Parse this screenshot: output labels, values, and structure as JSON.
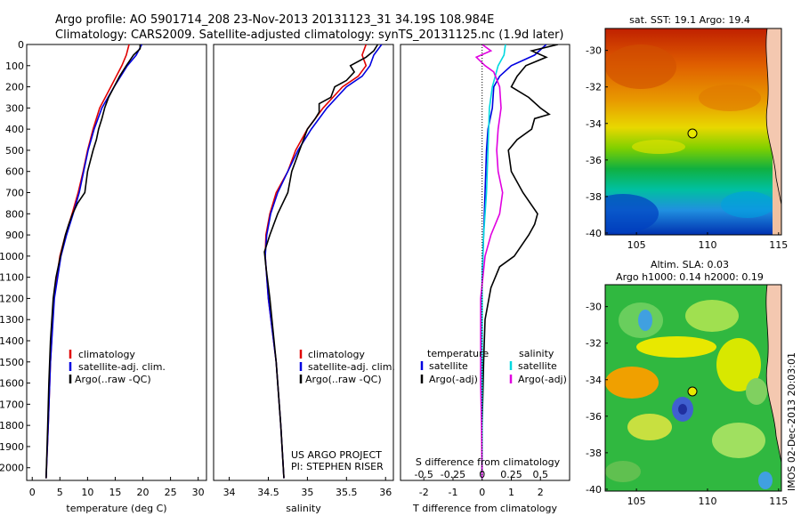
{
  "header": {
    "line1": "Argo profile: AO 5901714_208 23-Nov-2013 20131123_31 34.19S 108.984E",
    "line2": "Climatology: CARS2009. Satellite-adjusted climatology: synTS_20131125.nc (1.9d later)"
  },
  "side_text": "IMOS 02-Dec-2013 20:03:01",
  "colors": {
    "climatology": "#e00000",
    "satellite": "#0000e0",
    "argo": "#000000",
    "sat_salinity": "#00d8e0",
    "argo_salinity": "#e000e0"
  },
  "panels": {
    "temperature": {
      "xlabel": "temperature (deg C)",
      "legend": [
        "climatology",
        "satellite-adj. clim.",
        "Argo(..raw -QC)"
      ]
    },
    "salinity": {
      "xlabel": "salinity",
      "legend": [
        "climatology",
        "satellite-adj. clim.",
        "Argo(..raw -QC)"
      ],
      "credit1": "US ARGO PROJECT",
      "credit2": "PI: STEPHEN RISER"
    },
    "difference": {
      "xlabel": "T difference from climatology",
      "top_xlabel": "S difference from climatology",
      "legend_temp_title": "temperature",
      "legend_sal_title": "salinity",
      "legend_temp": [
        "satellite",
        "Argo(-adj)"
      ],
      "legend_sal": [
        "satellite",
        "Argo(-adj)"
      ]
    },
    "sst_map": {
      "title": "sat. SST: 19.1 Argo: 19.4",
      "x_ticks": [
        "105",
        "110",
        "115"
      ],
      "y_ticks": [
        "-30",
        "-32",
        "-34",
        "-36",
        "-38",
        "-40"
      ]
    },
    "sla_map": {
      "title1": "Altim. SLA: 0.03",
      "title2": "Argo h1000: 0.14 h2000: 0.19",
      "x_ticks": [
        "105",
        "110",
        "115"
      ],
      "y_ticks": [
        "-30",
        "-32",
        "-34",
        "-36",
        "-38",
        "-40"
      ]
    }
  },
  "chart_data": [
    {
      "type": "line",
      "panel": "temperature",
      "xlabel": "temperature (deg C)",
      "xlim": [
        -1,
        31.5
      ],
      "ylim": [
        2060,
        0
      ],
      "x_ticks": [
        0,
        5,
        10,
        15,
        20,
        25,
        30
      ],
      "y_ticks": [
        0,
        100,
        200,
        300,
        400,
        500,
        600,
        700,
        800,
        900,
        1000,
        1100,
        1200,
        1300,
        1400,
        1500,
        1600,
        1700,
        1800,
        1900,
        2000
      ],
      "series": [
        {
          "name": "climatology",
          "depth": [
            0,
            50,
            100,
            200,
            300,
            400,
            500,
            600,
            700,
            800,
            900,
            1000,
            1200,
            1500,
            1800,
            2050
          ],
          "values": [
            17.5,
            17,
            16.2,
            14.2,
            12.2,
            11.0,
            10.0,
            9.2,
            8.3,
            7.2,
            6.0,
            5.0,
            3.9,
            3.3,
            2.9,
            2.5
          ]
        },
        {
          "name": "satellite-adj. clim.",
          "depth": [
            0,
            50,
            100,
            200,
            300,
            400,
            500,
            600,
            700,
            800,
            900,
            1000,
            1200,
            1500,
            1800,
            2050
          ],
          "values": [
            19.8,
            18.8,
            17.2,
            14.8,
            12.6,
            11.2,
            10.1,
            9.3,
            8.5,
            7.4,
            6.2,
            5.2,
            4.0,
            3.3,
            2.9,
            2.5
          ]
        },
        {
          "name": "Argo(..raw -QC)",
          "depth": [
            0,
            20,
            50,
            100,
            150,
            200,
            250,
            300,
            350,
            400,
            450,
            500,
            600,
            700,
            750,
            800,
            850,
            900,
            1000,
            1100,
            1200,
            1400,
            1600,
            1800,
            2050
          ],
          "values": [
            19.5,
            19.5,
            18.3,
            17.0,
            15.8,
            14.8,
            13.8,
            13.1,
            12.6,
            12.0,
            11.6,
            11.0,
            10.0,
            9.5,
            8.2,
            7.3,
            6.6,
            6.0,
            5.1,
            4.3,
            3.8,
            3.3,
            3.0,
            2.8,
            2.5
          ]
        }
      ]
    },
    {
      "type": "line",
      "panel": "salinity",
      "xlabel": "salinity",
      "xlim": [
        33.8,
        36.1
      ],
      "ylim": [
        2060,
        0
      ],
      "x_ticks": [
        34,
        34.5,
        35,
        35.5,
        36
      ],
      "series": [
        {
          "name": "climatology",
          "depth": [
            0,
            50,
            100,
            150,
            200,
            300,
            400,
            500,
            600,
            700,
            800,
            900,
            1000,
            1200,
            1500,
            1800,
            2050
          ],
          "values": [
            35.75,
            35.7,
            35.75,
            35.65,
            35.45,
            35.2,
            35.0,
            34.85,
            34.75,
            34.6,
            34.52,
            34.47,
            34.46,
            34.5,
            34.6,
            34.66,
            34.7
          ]
        },
        {
          "name": "satellite-adj. clim.",
          "depth": [
            0,
            50,
            100,
            150,
            200,
            300,
            400,
            500,
            600,
            700,
            800,
            900,
            1000,
            1200,
            1500,
            1800,
            2050
          ],
          "values": [
            35.95,
            35.85,
            35.8,
            35.7,
            35.5,
            35.25,
            35.05,
            34.88,
            34.75,
            34.62,
            34.53,
            34.48,
            34.46,
            34.5,
            34.6,
            34.66,
            34.7
          ]
        },
        {
          "name": "Argo(..raw -QC)",
          "depth": [
            0,
            30,
            60,
            100,
            130,
            170,
            200,
            250,
            280,
            320,
            350,
            400,
            450,
            500,
            600,
            700,
            800,
            900,
            980,
            1050,
            1200,
            1500,
            1800,
            2050
          ],
          "values": [
            35.9,
            35.85,
            35.75,
            35.55,
            35.6,
            35.5,
            35.35,
            35.3,
            35.15,
            35.15,
            35.1,
            35.0,
            34.95,
            34.9,
            34.8,
            34.75,
            34.62,
            34.52,
            34.45,
            34.47,
            34.52,
            34.6,
            34.66,
            34.7
          ]
        }
      ]
    },
    {
      "type": "line",
      "panel": "difference",
      "xlabel": "T difference from climatology",
      "xlim": [
        -2.8,
        3.0
      ],
      "ylim": [
        2060,
        0
      ],
      "x_ticks": [
        -2,
        -1,
        0,
        1,
        2
      ],
      "top_ticks": [
        "-0.5",
        "-0.25",
        "0",
        "0.25",
        "0.5"
      ],
      "series": [
        {
          "name": "satellite (temperature)",
          "depth": [
            0,
            50,
            100,
            150,
            200,
            300,
            400,
            500,
            700,
            900,
            1100,
            1500,
            2050
          ],
          "values": [
            2.2,
            1.8,
            1.0,
            0.6,
            0.4,
            0.35,
            0.2,
            0.15,
            0.1,
            0.05,
            0.0,
            0.0,
            0.0
          ]
        },
        {
          "name": "Argo(-adj) (temperature)",
          "depth": [
            0,
            30,
            60,
            100,
            150,
            200,
            250,
            300,
            330,
            350,
            400,
            450,
            500,
            600,
            700,
            800,
            850,
            900,
            1000,
            1050,
            1150,
            1300,
            1500,
            1800,
            2050
          ],
          "values": [
            2.6,
            1.7,
            2.2,
            1.5,
            1.2,
            1.0,
            1.6,
            2.0,
            2.3,
            1.8,
            1.7,
            1.2,
            0.9,
            1.0,
            1.4,
            1.9,
            1.8,
            1.6,
            1.1,
            0.6,
            0.3,
            0.1,
            0.05,
            0.0,
            0.0
          ]
        },
        {
          "name": "satellite (salinity)",
          "depth": [
            0,
            50,
            100,
            200,
            300,
            500,
            700,
            900,
            1100,
            1500,
            2050
          ],
          "values": [
            0.8,
            0.75,
            0.55,
            0.35,
            0.25,
            0.2,
            0.15,
            0.05,
            0.0,
            0.0,
            0.0
          ]
        },
        {
          "name": "Argo(-adj) (salinity)",
          "depth": [
            0,
            30,
            60,
            100,
            130,
            200,
            300,
            400,
            500,
            600,
            700,
            800,
            900,
            1000,
            1200,
            1400,
            1600,
            1800,
            2050
          ],
          "values": [
            0.0,
            0.3,
            -0.2,
            0.1,
            0.4,
            0.6,
            0.65,
            0.55,
            0.5,
            0.55,
            0.7,
            0.6,
            0.3,
            0.1,
            -0.05,
            -0.05,
            -0.05,
            -0.02,
            0.0
          ]
        }
      ]
    }
  ]
}
